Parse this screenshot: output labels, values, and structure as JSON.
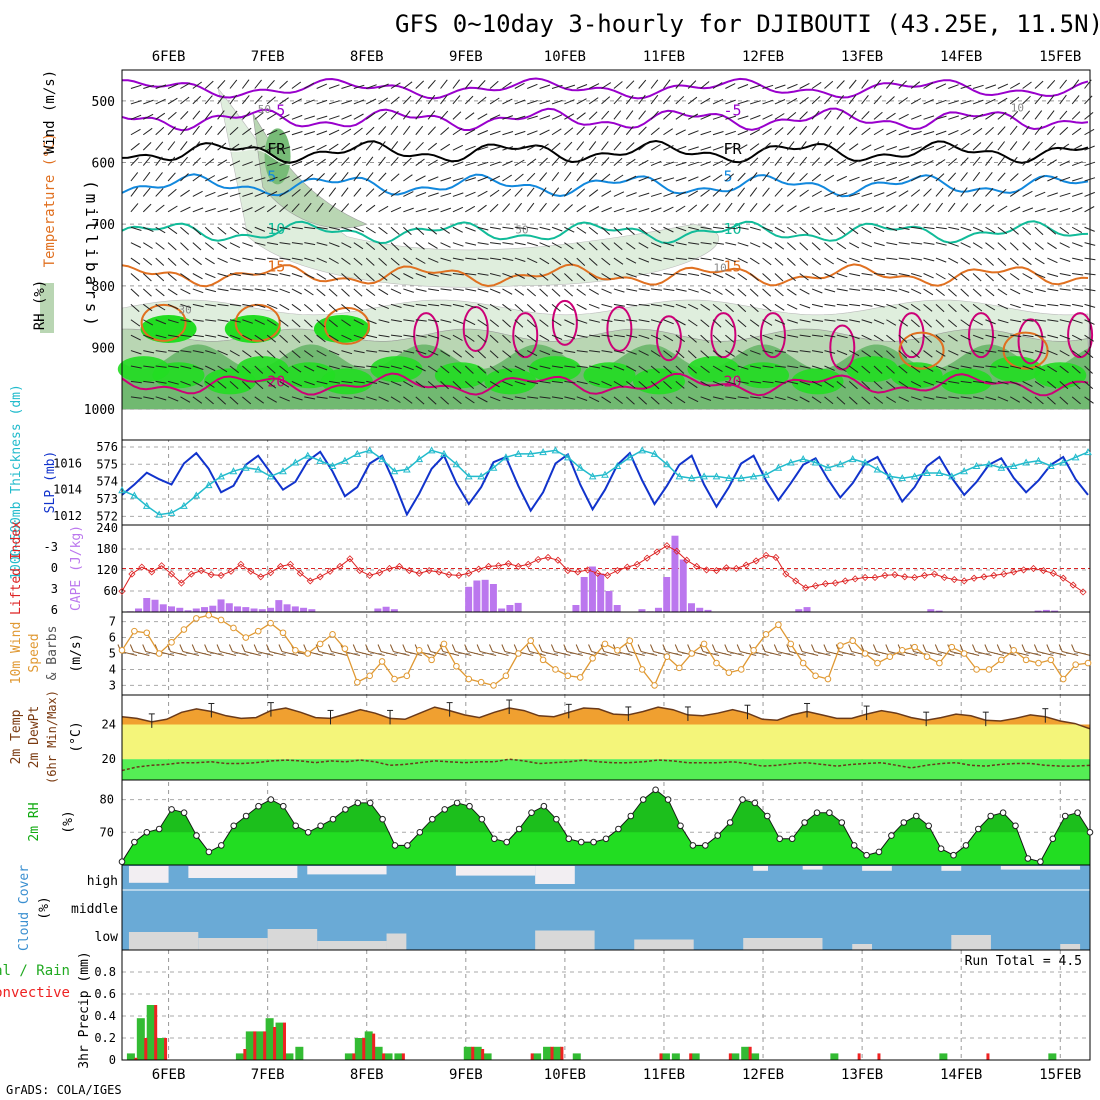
{
  "title": "GFS 0~10day 3-hourly for DJIBOUTI (43.25E, 11.5N)",
  "credit": "GrADS: COLA/IGES",
  "colors": {
    "rh_green_light": "#dfeedd",
    "rh_green_mid": "#b9d6b3",
    "rh_green_dark": "#71b971",
    "rh_bright": "#22dd22",
    "temp_purple": "#9900cc",
    "temp_black": "#000000",
    "temp_blue": "#1188dd",
    "temp_teal": "#11bb99",
    "temp_orange": "#e07020",
    "temp_magenta": "#cc0077",
    "slp_blue": "#1133cc",
    "thickness_cyan": "#22bbcc",
    "cape_purple": "#bb77ee",
    "lifted_red": "#dd2222",
    "wind_orange": "#e09933",
    "barb_brown": "#8b5a2b",
    "temp_fill": "#f0a030",
    "dew_band_yellow": "#f4f57a",
    "dew_fill_green": "#55ee55",
    "rh2m_fill": "#22dd22",
    "cloud_blue": "#6aaad6",
    "cloud_white": "#f2eef2",
    "cloud_gray": "#d8d8d8",
    "precip_green": "#33bb33",
    "precip_red": "#ee2222"
  },
  "chart_data": [
    {
      "type": "heatmap",
      "panel": "upper-air",
      "legend_labels": [
        "RH (%)",
        "Temperature (°C)",
        "Wind (m/s)"
      ],
      "ylabel": "(millibars)",
      "ytick_labels": [
        "500",
        "600",
        "700",
        "800",
        "900",
        "1000"
      ],
      "xtick_labels_top": [
        "6FEB",
        "7FEB",
        "8FEB",
        "9FEB",
        "10FEB",
        "11FEB",
        "12FEB",
        "13FEB",
        "14FEB",
        "15FEB"
      ],
      "x_range_days": [
        5.53,
        15.3
      ],
      "ylim_mb": [
        450,
        1050
      ],
      "isotherms": [
        {
          "value": -5,
          "label": "-5",
          "level_mb": 530
        },
        {
          "value": 0,
          "label": "FR",
          "level_mb": 583
        },
        {
          "value": 5,
          "label": "5",
          "level_mb": 637
        },
        {
          "value": 10,
          "label": "10",
          "level_mb": 713
        },
        {
          "value": 15,
          "label": "15",
          "level_mb": 783
        },
        {
          "value": 20,
          "label": "20",
          "level_mb": 960
        }
      ],
      "contour_labels": [
        "30",
        "50",
        "10"
      ],
      "rh_description": "moist layer 850-1000 mb, mid-level plume around 7FEB"
    },
    {
      "type": "line",
      "panel": "slp-thickness",
      "ylabel_left": "1000~500mb Thickness (dm)",
      "ylabel_right": "SLP (mb)",
      "y_left_ticks": [
        "572",
        "573",
        "574",
        "575",
        "576"
      ],
      "y_right_ticks": [
        "1012",
        "1014",
        "1016"
      ],
      "x_start": 5.53,
      "dx": 0.125,
      "series": [
        {
          "name": "SLP (mb)",
          "values": [
            1013.6,
            1014.4,
            1015.3,
            1014.8,
            1014.4,
            1016.0,
            1016.8,
            1015.6,
            1013.8,
            1014.3,
            1015.9,
            1016.6,
            1015.3,
            1014.0,
            1014.6,
            1016.2,
            1016.9,
            1015.4,
            1013.5,
            1014.2,
            1016.0,
            1016.6,
            1014.5,
            1012.1,
            1013.7,
            1015.6,
            1016.6,
            1014.5,
            1012.9,
            1014.2,
            1016.1,
            1016.5,
            1014.3,
            1012.4,
            1013.8,
            1016.0,
            1016.7,
            1014.4,
            1012.5,
            1014.0,
            1015.9,
            1016.8,
            1014.7,
            1012.9,
            1014.3,
            1015.9,
            1016.6,
            1014.4,
            1012.7,
            1014.2,
            1016.0,
            1016.6,
            1014.7,
            1013.2,
            1014.5,
            1015.9,
            1016.4,
            1014.8,
            1013.4,
            1014.5,
            1016.0,
            1016.5,
            1014.8,
            1013.1,
            1014.2,
            1015.8,
            1016.5,
            1014.9,
            1013.6,
            1014.6,
            1015.9,
            1016.4,
            1014.9,
            1013.8,
            1014.7,
            1015.9,
            1016.5,
            1014.8,
            1013.6,
            1014.7,
            1016.0,
            1016.5,
            1015.0
          ]
        },
        {
          "name": "Thickness (dm)",
          "values": [
            573.5,
            573.2,
            572.6,
            572.1,
            572.2,
            572.6,
            573.2,
            573.8,
            574.3,
            574.6,
            574.8,
            574.7,
            574.3,
            574.6,
            575.1,
            575.5,
            575.2,
            574.9,
            575.2,
            575.6,
            575.8,
            575.3,
            574.6,
            574.7,
            575.3,
            575.8,
            575.6,
            575.0,
            574.3,
            574.3,
            574.8,
            575.4,
            575.6,
            575.6,
            575.7,
            575.8,
            575.4,
            574.8,
            574.3,
            574.4,
            574.9,
            575.4,
            575.8,
            575.6,
            575.0,
            574.3,
            574.2,
            574.3,
            574.3,
            574.2,
            574.2,
            574.3,
            574.4,
            574.8,
            575.1,
            575.3,
            575.1,
            574.8,
            575.0,
            575.3,
            575.1,
            574.7,
            574.3,
            574.2,
            574.3,
            574.5,
            574.5,
            574.3,
            574.6,
            574.9,
            575.0,
            574.8,
            574.9,
            575.1,
            575.2,
            574.9,
            575.1,
            575.4,
            575.7,
            575.4,
            575.0,
            574.7,
            574.8
          ]
        }
      ]
    },
    {
      "type": "bar",
      "panel": "cape-lifted-index",
      "ylabel_left": "Lifted Index",
      "ylabel_right": "CAPE (J/kg)",
      "y_left_ticks": [
        "-3",
        "0",
        "3",
        "6"
      ],
      "y_right_ticks": [
        "240",
        "180",
        "120",
        "60"
      ],
      "x_start": 5.53,
      "dx": 0.125,
      "series": [
        {
          "name": "CAPE (J/kg)",
          "values": [
            0,
            2,
            10,
            40,
            35,
            22,
            16,
            12,
            5,
            10,
            14,
            18,
            36,
            25,
            16,
            14,
            10,
            8,
            12,
            34,
            22,
            16,
            12,
            8,
            0,
            0,
            0,
            0,
            0,
            0,
            0,
            10,
            15,
            8,
            0,
            0,
            0,
            0,
            0,
            0,
            0,
            0,
            72,
            90,
            92,
            80,
            10,
            20,
            26,
            0,
            0,
            0,
            0,
            0,
            0,
            20,
            100,
            130,
            110,
            60,
            20,
            0,
            0,
            8,
            2,
            12,
            100,
            218,
            150,
            25,
            12,
            6,
            0,
            0,
            0,
            0,
            0,
            0,
            0,
            0,
            0,
            0,
            8,
            14,
            0,
            0,
            0,
            0,
            0,
            0,
            0,
            0,
            0,
            0,
            0,
            0,
            0,
            0,
            8,
            4,
            0,
            0,
            0,
            0,
            0,
            0,
            0,
            0,
            0,
            0,
            0,
            4,
            6,
            4
          ]
        },
        {
          "name": "Lifted Index",
          "values": [
            3.3,
            0.8,
            -0.2,
            0.5,
            -0.4,
            0.8,
            2.1,
            0.8,
            0.3,
            0.9,
            1.0,
            0.4,
            -0.6,
            0.4,
            1.2,
            0.6,
            -0.3,
            -0.6,
            0.7,
            1.8,
            1.2,
            0.4,
            -0.3,
            -1.4,
            0.3,
            1.0,
            0.6,
            0.0,
            -0.3,
            0.3,
            0.7,
            0.3,
            0.5,
            0.9,
            1.0,
            0.7,
            0.1,
            -0.3,
            -0.4,
            -0.7,
            -0.3,
            -0.6,
            -1.3,
            -1.6,
            -1.2,
            0.3,
            0.5,
            0.2,
            0.7,
            1.0,
            0.3,
            -0.2,
            -0.6,
            -1.5,
            -2.4,
            -3.3,
            -2.5,
            -1.2,
            -0.3,
            0.2,
            0.3,
            -0.1,
            0.0,
            -0.5,
            -1.1,
            -1.9,
            -1.6,
            0.8,
            1.8,
            2.8,
            2.5,
            2.2,
            2.1,
            1.8,
            1.5,
            1.3,
            1.3,
            1.0,
            0.9,
            1.2,
            1.3,
            1.0,
            0.8,
            1.3,
            1.6,
            1.8,
            1.4,
            1.2,
            1.0,
            0.8,
            0.5,
            0.2,
            0.0,
            0.3,
            0.7,
            1.4,
            2.4,
            3.4
          ]
        }
      ]
    },
    {
      "type": "line",
      "panel": "10m-wind",
      "ylabel": "10m Wind Speed & Barbs (m/s)",
      "y_ticks": [
        "3",
        "4",
        "5",
        "6",
        "7"
      ],
      "x_start": 5.53,
      "dx": 0.125,
      "series": [
        {
          "name": "Speed (m/s)",
          "values": [
            5.2,
            6.4,
            6.3,
            5.0,
            5.7,
            6.5,
            7.2,
            7.4,
            7.1,
            6.6,
            6.0,
            6.4,
            6.9,
            6.3,
            5.2,
            5.0,
            5.6,
            6.2,
            5.3,
            3.2,
            3.6,
            4.5,
            3.4,
            3.6,
            5.2,
            4.6,
            5.6,
            4.2,
            3.4,
            3.2,
            3.0,
            3.6,
            5.0,
            5.8,
            4.6,
            4.0,
            3.6,
            3.5,
            4.7,
            5.6,
            5.2,
            5.8,
            4.0,
            3.0,
            4.8,
            4.1,
            5.0,
            5.6,
            4.4,
            3.8,
            4.0,
            5.2,
            6.2,
            6.8,
            5.6,
            4.4,
            3.6,
            3.4,
            5.5,
            5.8,
            5.0,
            4.4,
            4.8,
            5.2,
            5.4,
            4.8,
            4.4,
            5.4,
            5.0,
            4.0,
            4.0,
            4.6,
            5.2,
            4.6,
            4.4,
            4.6,
            3.4,
            4.3,
            4.4,
            3.5,
            4.0
          ]
        }
      ]
    },
    {
      "type": "area",
      "panel": "2m-temp-dewpoint",
      "ylabel": "2m Temp 2m DewPt (6hr Min/Max) (°C)",
      "y_ticks": [
        "20",
        "24"
      ],
      "x_start": 5.53,
      "dx": 0.125,
      "series": [
        {
          "name": "2m Temp",
          "values": [
            24.9,
            24.7,
            24.3,
            24.6,
            25.4,
            25.8,
            25.5,
            25.0,
            24.7,
            24.8,
            25.6,
            25.9,
            25.4,
            24.8,
            24.7,
            25.2,
            25.7,
            25.3,
            24.7,
            24.6,
            25.3,
            26.0,
            25.6,
            25.1,
            24.8,
            25.4,
            25.9,
            25.6,
            25.0,
            24.9,
            25.4,
            25.9,
            25.8,
            25.2,
            25.1,
            25.5,
            26.0,
            25.7,
            25.1,
            25.0,
            25.3,
            25.7,
            25.3,
            24.6,
            24.5,
            25.1,
            25.5,
            25.1,
            24.7,
            24.7,
            25.2,
            25.6,
            25.3,
            24.8,
            24.5,
            24.8,
            25.2,
            25.0,
            24.5,
            24.4,
            24.7,
            25.1,
            24.9,
            24.4,
            24.1,
            23.5
          ]
        },
        {
          "name": "2m DewPt",
          "values": [
            18.7,
            19.1,
            19.3,
            19.4,
            19.6,
            19.6,
            19.7,
            19.5,
            19.5,
            19.6,
            19.8,
            19.9,
            19.8,
            19.6,
            19.8,
            19.7,
            19.9,
            19.7,
            19.3,
            19.4,
            19.6,
            19.8,
            19.7,
            19.6,
            19.7,
            19.7,
            20.0,
            19.8,
            19.5,
            19.6,
            19.7,
            19.9,
            19.7,
            19.6,
            19.6,
            19.7,
            19.9,
            19.8,
            19.6,
            19.6,
            19.6,
            19.7,
            19.5,
            19.2,
            19.3,
            19.5,
            19.6,
            19.4,
            19.2,
            19.4,
            19.5,
            19.6,
            19.3,
            19.0,
            19.3,
            19.5,
            19.6,
            19.3,
            19.2,
            19.4,
            19.5,
            19.5,
            19.3,
            19.2,
            19.2,
            19.3
          ]
        }
      ],
      "yellow_band_range": [
        20,
        24
      ]
    },
    {
      "type": "area",
      "panel": "2m-rh",
      "ylabel": "2m RH (%)",
      "y_ticks": [
        "70",
        "80"
      ],
      "x_start": 5.53,
      "dx": 0.125,
      "series": [
        {
          "name": "2m RH (%)",
          "values": [
            61,
            67,
            70,
            71,
            77,
            76,
            69,
            64,
            66,
            72,
            75,
            78,
            80,
            78,
            72,
            70,
            72,
            74,
            77,
            79,
            79,
            74,
            66,
            66,
            70,
            74,
            77,
            79,
            78,
            74,
            68,
            67,
            71,
            76,
            78,
            74,
            68,
            67,
            67,
            68,
            71,
            75,
            80,
            83,
            80,
            72,
            66,
            66,
            69,
            73,
            80,
            79,
            75,
            68,
            68,
            73,
            76,
            76,
            73,
            66,
            63,
            64,
            69,
            73,
            75,
            72,
            65,
            63,
            66,
            71,
            75,
            76,
            72,
            62,
            61,
            68,
            75,
            76,
            70
          ]
        }
      ]
    },
    {
      "type": "heatmap",
      "panel": "cloud-cover",
      "ylabel": "Cloud Cover (%)",
      "row_labels": [
        "high",
        "middle",
        "low"
      ]
    },
    {
      "type": "bar",
      "panel": "precip",
      "ylabel": "3hr Precip (mm)",
      "legend_labels": [
        "Total / Rain",
        "Convective"
      ],
      "annotation": "Run Total = 4.5",
      "y_ticks": [
        "0",
        "0.2",
        "0.4",
        "0.6",
        "0.8"
      ],
      "ylim": [
        0,
        1.0
      ],
      "xtick_labels_bottom": [
        "6FEB",
        "7FEB",
        "8FEB",
        "9FEB",
        "10FEB",
        "11FEB",
        "12FEB",
        "13FEB",
        "14FEB",
        "15FEB"
      ],
      "series": [
        {
          "name": "Total / Rain",
          "day": [
            5.62,
            5.72,
            5.82,
            5.92,
            6.72,
            6.82,
            6.92,
            7.02,
            7.12,
            7.22,
            7.32,
            7.82,
            7.92,
            8.02,
            8.12,
            8.22,
            8.32,
            9.02,
            9.12,
            9.22,
            9.72,
            9.82,
            9.92,
            10.12,
            11.02,
            11.12,
            11.32,
            11.72,
            11.82,
            11.92,
            12.72,
            13.82,
            14.92
          ],
          "values": [
            0.06,
            0.38,
            0.5,
            0.2,
            0.06,
            0.26,
            0.26,
            0.38,
            0.34,
            0.06,
            0.12,
            0.06,
            0.2,
            0.26,
            0.12,
            0.06,
            0.06,
            0.12,
            0.12,
            0.06,
            0.06,
            0.12,
            0.12,
            0.06,
            0.06,
            0.06,
            0.06,
            0.06,
            0.12,
            0.06,
            0.06,
            0.06,
            0.06
          ]
        },
        {
          "name": "Convective",
          "day": [
            5.67,
            5.77,
            5.87,
            5.97,
            6.77,
            6.87,
            6.97,
            7.07,
            7.17,
            7.87,
            7.97,
            8.07,
            8.17,
            8.37,
            9.07,
            9.17,
            9.67,
            9.87,
            9.97,
            10.97,
            11.27,
            11.67,
            11.87,
            12.97,
            13.17,
            14.27
          ],
          "values": [
            0.02,
            0.2,
            0.5,
            0.2,
            0.1,
            0.26,
            0.26,
            0.3,
            0.34,
            0.06,
            0.2,
            0.24,
            0.06,
            0.06,
            0.12,
            0.1,
            0.06,
            0.12,
            0.12,
            0.06,
            0.06,
            0.06,
            0.12,
            0.06,
            0.06,
            0.06
          ]
        }
      ]
    }
  ]
}
